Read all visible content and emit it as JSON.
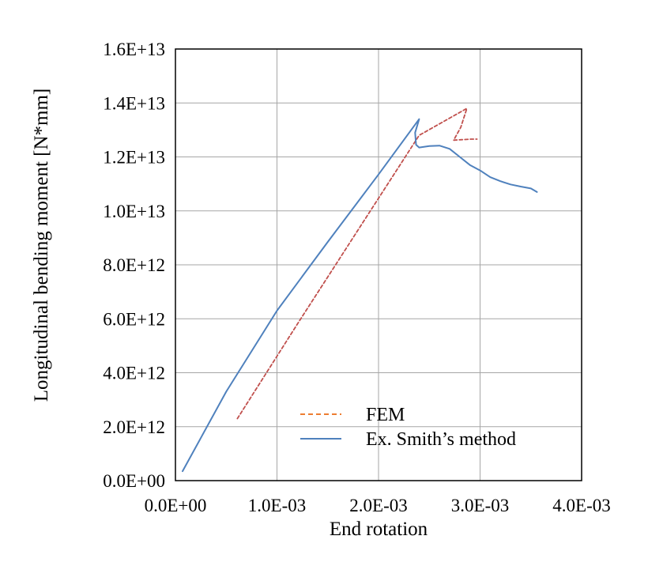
{
  "chart_data": {
    "type": "line",
    "title": "",
    "xlabel": "End rotation",
    "ylabel": "Longitudinal bending moment [N*mm]",
    "xlim": [
      0,
      0.004
    ],
    "ylim": [
      0,
      16000000000000
    ],
    "x_ticks": [
      {
        "value": 0,
        "label": "0.0E+00"
      },
      {
        "value": 0.001,
        "label": "1.0E-03"
      },
      {
        "value": 0.002,
        "label": "2.0E-03"
      },
      {
        "value": 0.003,
        "label": "3.0E-03"
      },
      {
        "value": 0.004,
        "label": "4.0E-03"
      }
    ],
    "y_ticks": [
      {
        "value": 0,
        "label": "0.0E+00"
      },
      {
        "value": 2000000000000,
        "label": "2.0E+12"
      },
      {
        "value": 4000000000000,
        "label": "4.0E+12"
      },
      {
        "value": 6000000000000,
        "label": "6.0E+12"
      },
      {
        "value": 8000000000000,
        "label": "8.0E+12"
      },
      {
        "value": 10000000000000,
        "label": "1.0E+13"
      },
      {
        "value": 12000000000000,
        "label": "1.2E+13"
      },
      {
        "value": 14000000000000,
        "label": "1.4E+13"
      },
      {
        "value": 16000000000000,
        "label": "1.6E+13"
      }
    ],
    "grid": true,
    "legend_position": "lower-right",
    "series": [
      {
        "name": "FEM",
        "color": "#c0504d",
        "legend_color": "#ed7d31",
        "dash": true,
        "points": [
          [
            0.00061,
            2300000000000
          ],
          [
            0.0012,
            5800000000000
          ],
          [
            0.0018,
            9300000000000
          ],
          [
            0.0024,
            12800000000000
          ],
          [
            0.00287,
            13800000000000
          ],
          [
            0.00281,
            13100000000000
          ],
          [
            0.00274,
            12620000000000
          ],
          [
            0.00282,
            12640000000000
          ],
          [
            0.00291,
            12660000000000
          ],
          [
            0.00297,
            12660000000000
          ]
        ]
      },
      {
        "name": "Ex. Smith’s method",
        "color": "#4f81bd",
        "dash": false,
        "points": [
          [
            7e-05,
            350000000000
          ],
          [
            0.0005,
            3300000000000
          ],
          [
            0.001,
            6300000000000
          ],
          [
            0.0015,
            8850000000000
          ],
          [
            0.002,
            11350000000000
          ],
          [
            0.0024,
            13400000000000
          ],
          [
            0.00236,
            12900000000000
          ],
          [
            0.00237,
            12450000000000
          ],
          [
            0.0024,
            12350000000000
          ],
          [
            0.0025,
            12400000000000
          ],
          [
            0.0026,
            12420000000000
          ],
          [
            0.0027,
            12300000000000
          ],
          [
            0.0028,
            12000000000000
          ],
          [
            0.0029,
            11700000000000
          ],
          [
            0.003,
            11500000000000
          ],
          [
            0.0031,
            11250000000000
          ],
          [
            0.0032,
            11100000000000
          ],
          [
            0.0033,
            10980000000000
          ],
          [
            0.0034,
            10900000000000
          ],
          [
            0.0035,
            10830000000000
          ],
          [
            0.00356,
            10700000000000
          ]
        ]
      }
    ]
  }
}
